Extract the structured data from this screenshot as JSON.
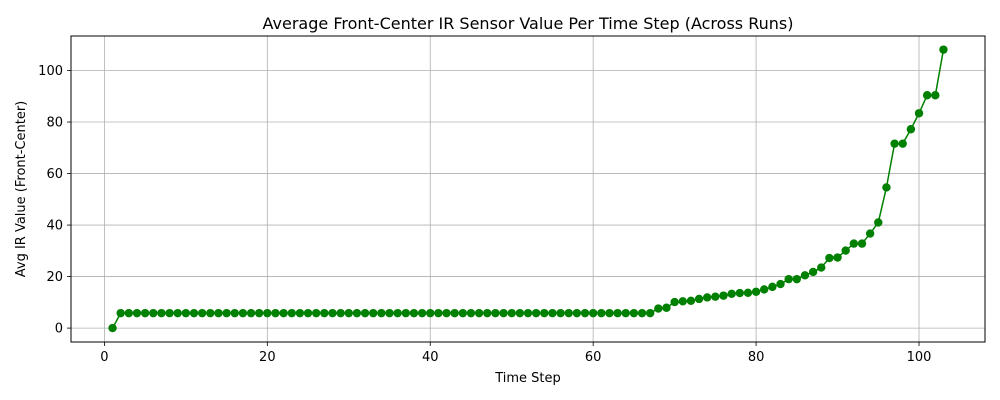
{
  "chart_data": {
    "type": "line",
    "title": "Average Front-Center IR Sensor Value Per Time Step (Across Runs)",
    "xlabel": "Time Step",
    "ylabel": "Avg IR Value (Front-Center)",
    "xlim": [
      -4.1,
      108.1
    ],
    "ylim": [
      -5.4,
      113.4
    ],
    "xticks": [
      0,
      20,
      40,
      60,
      80,
      100
    ],
    "yticks": [
      0,
      20,
      40,
      60,
      80,
      100
    ],
    "grid": true,
    "line_color": "#008000",
    "series": [
      {
        "x": [
          1,
          2,
          3,
          4,
          5,
          6,
          7,
          8,
          9,
          10,
          11,
          12,
          13,
          14,
          15,
          16,
          17,
          18,
          19,
          20,
          21,
          22,
          23,
          24,
          25,
          26,
          27,
          28,
          29,
          30,
          31,
          32,
          33,
          34,
          35,
          36,
          37,
          38,
          39,
          40,
          41,
          42,
          43,
          44,
          45,
          46,
          47,
          48,
          49,
          50,
          51,
          52,
          53,
          54,
          55,
          56,
          57,
          58,
          59,
          60,
          61,
          62,
          63,
          64,
          65,
          66,
          67,
          68,
          69,
          70,
          71,
          72,
          73,
          74,
          75,
          76,
          77,
          78,
          79,
          80,
          81,
          82,
          83,
          84,
          85,
          86,
          87,
          88,
          89,
          90,
          91,
          92,
          93,
          94,
          95,
          96,
          97,
          98,
          99,
          100,
          101,
          102,
          103
        ],
        "y": [
          0,
          5.8,
          5.8,
          5.8,
          5.8,
          5.8,
          5.8,
          5.8,
          5.8,
          5.8,
          5.8,
          5.8,
          5.8,
          5.8,
          5.8,
          5.8,
          5.8,
          5.8,
          5.8,
          5.8,
          5.8,
          5.8,
          5.8,
          5.8,
          5.8,
          5.8,
          5.8,
          5.8,
          5.8,
          5.8,
          5.8,
          5.8,
          5.8,
          5.8,
          5.8,
          5.8,
          5.8,
          5.8,
          5.8,
          5.8,
          5.8,
          5.8,
          5.8,
          5.8,
          5.8,
          5.8,
          5.8,
          5.8,
          5.8,
          5.8,
          5.8,
          5.8,
          5.8,
          5.8,
          5.8,
          5.8,
          5.8,
          5.8,
          5.8,
          5.8,
          5.8,
          5.8,
          5.8,
          5.8,
          5.8,
          5.8,
          5.8,
          7.6,
          7.9,
          10.1,
          10.4,
          10.6,
          11.3,
          11.9,
          12.2,
          12.6,
          13.3,
          13.6,
          13.7,
          14.1,
          15.0,
          16.0,
          17.1,
          19.0,
          19.0,
          20.5,
          21.8,
          23.5,
          27.2,
          27.4,
          30.1,
          32.8,
          32.8,
          36.7,
          41.0,
          54.6,
          71.6,
          71.6,
          77.2,
          83.4,
          90.4,
          90.4,
          108.1
        ]
      }
    ]
  }
}
